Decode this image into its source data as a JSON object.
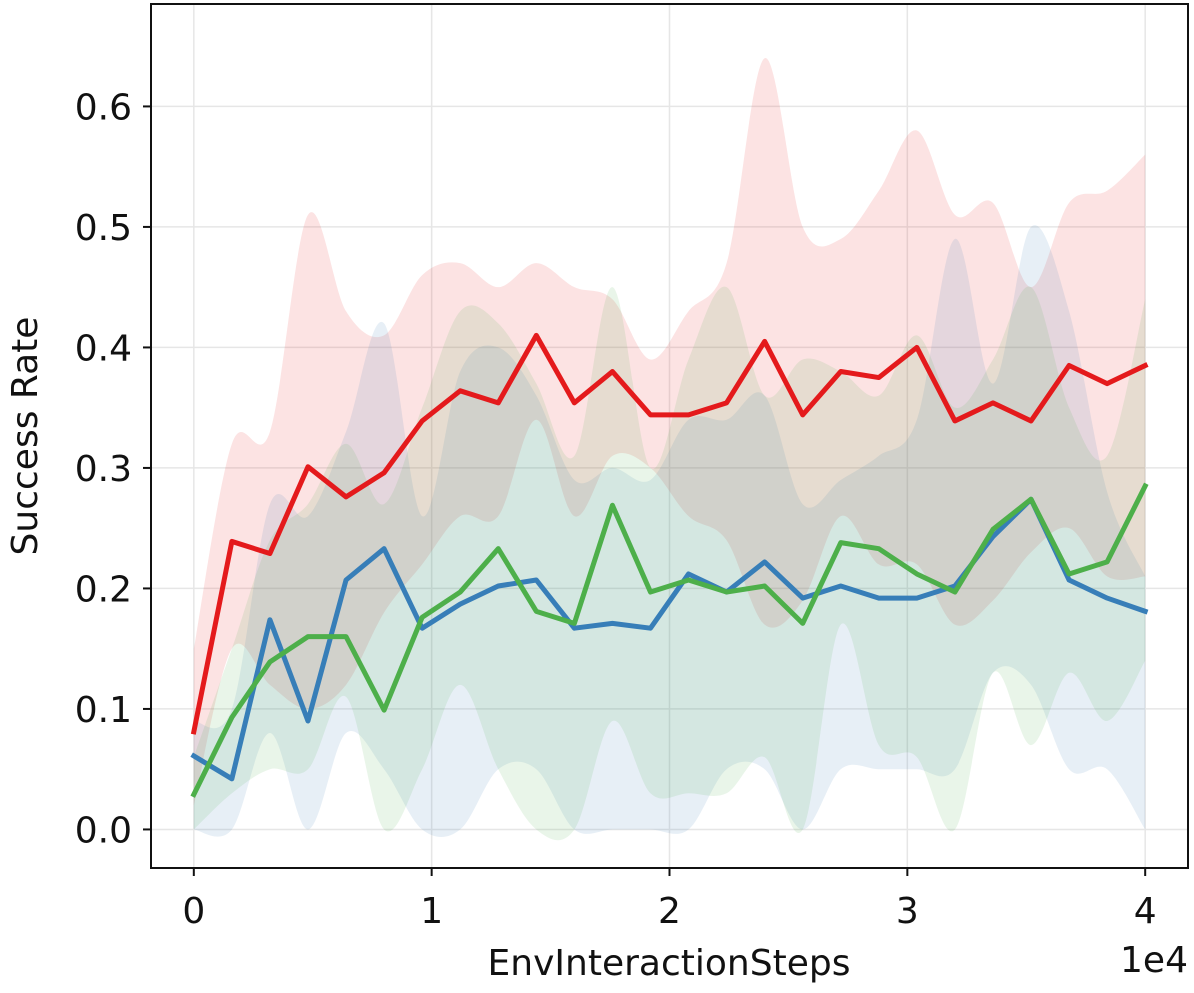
{
  "chart_data": {
    "type": "line",
    "xlabel": "EnvInteractionSteps",
    "ylabel": "Success Rate",
    "x_offset_label": "1e4",
    "xlim": [
      -0.18,
      4.18
    ],
    "ylim": [
      -0.032,
      0.685
    ],
    "x_ticks": [
      0,
      1,
      2,
      3,
      4
    ],
    "x_tick_labels": [
      "0",
      "1",
      "2",
      "3",
      "4"
    ],
    "y_ticks": [
      0.0,
      0.1,
      0.2,
      0.3,
      0.4,
      0.5,
      0.6
    ],
    "y_tick_labels": [
      "0.0",
      "0.1",
      "0.2",
      "0.3",
      "0.4",
      "0.5",
      "0.6"
    ],
    "grid": true,
    "x": [
      0.0,
      0.16,
      0.32,
      0.48,
      0.64,
      0.8,
      0.96,
      1.12,
      1.28,
      1.44,
      1.6,
      1.76,
      1.92,
      2.08,
      2.24,
      2.4,
      2.56,
      2.72,
      2.88,
      3.04,
      3.2,
      3.36,
      3.52,
      3.68,
      3.84,
      4.0
    ],
    "series": [
      {
        "color": "#e41a1c",
        "values": [
          0.081,
          0.239,
          0.229,
          0.301,
          0.276,
          0.296,
          0.339,
          0.364,
          0.354,
          0.41,
          0.354,
          0.38,
          0.344,
          0.344,
          0.354,
          0.405,
          0.344,
          0.38,
          0.375,
          0.4,
          0.339,
          0.354,
          0.339,
          0.385,
          0.37,
          0.385
        ],
        "upper": [
          0.15,
          0.32,
          0.33,
          0.51,
          0.43,
          0.41,
          0.46,
          0.47,
          0.45,
          0.47,
          0.45,
          0.44,
          0.39,
          0.43,
          0.47,
          0.64,
          0.5,
          0.49,
          0.53,
          0.58,
          0.51,
          0.52,
          0.45,
          0.52,
          0.53,
          0.56
        ],
        "lower": [
          0.02,
          0.15,
          0.12,
          0.1,
          0.12,
          0.18,
          0.22,
          0.26,
          0.26,
          0.34,
          0.26,
          0.31,
          0.3,
          0.26,
          0.24,
          0.17,
          0.19,
          0.26,
          0.22,
          0.22,
          0.17,
          0.19,
          0.23,
          0.25,
          0.21,
          0.21
        ]
      },
      {
        "color": "#377eb8",
        "values": [
          0.061,
          0.042,
          0.174,
          0.09,
          0.207,
          0.233,
          0.167,
          0.187,
          0.202,
          0.207,
          0.167,
          0.171,
          0.167,
          0.212,
          0.197,
          0.222,
          0.192,
          0.202,
          0.192,
          0.192,
          0.202,
          0.243,
          0.274,
          0.207,
          0.192,
          0.181
        ],
        "upper": [
          0.09,
          0.1,
          0.27,
          0.26,
          0.33,
          0.42,
          0.26,
          0.38,
          0.4,
          0.36,
          0.29,
          0.3,
          0.29,
          0.34,
          0.34,
          0.36,
          0.27,
          0.29,
          0.31,
          0.34,
          0.49,
          0.37,
          0.5,
          0.43,
          0.28,
          0.21
        ],
        "lower": [
          0.0,
          0.0,
          0.08,
          0.0,
          0.08,
          0.05,
          0.0,
          0.0,
          0.05,
          0.05,
          0.0,
          0.0,
          0.0,
          0.0,
          0.05,
          0.05,
          0.0,
          0.05,
          0.05,
          0.05,
          0.05,
          0.13,
          0.12,
          0.05,
          0.05,
          0.0
        ]
      },
      {
        "color": "#4daf4a",
        "values": [
          0.029,
          0.093,
          0.139,
          0.16,
          0.16,
          0.099,
          0.176,
          0.197,
          0.233,
          0.181,
          0.171,
          0.269,
          0.197,
          0.207,
          0.197,
          0.202,
          0.171,
          0.238,
          0.233,
          0.212,
          0.197,
          0.249,
          0.274,
          0.212,
          0.222,
          0.285
        ],
        "upper": [
          0.06,
          0.15,
          0.24,
          0.27,
          0.32,
          0.27,
          0.35,
          0.43,
          0.42,
          0.37,
          0.31,
          0.45,
          0.3,
          0.39,
          0.45,
          0.36,
          0.39,
          0.38,
          0.36,
          0.41,
          0.35,
          0.39,
          0.45,
          0.35,
          0.31,
          0.44
        ],
        "lower": [
          0.0,
          0.03,
          0.05,
          0.05,
          0.11,
          0.0,
          0.05,
          0.12,
          0.05,
          0.0,
          0.0,
          0.09,
          0.03,
          0.03,
          0.03,
          0.06,
          0.0,
          0.17,
          0.07,
          0.06,
          0.0,
          0.13,
          0.07,
          0.13,
          0.09,
          0.14
        ]
      }
    ]
  }
}
